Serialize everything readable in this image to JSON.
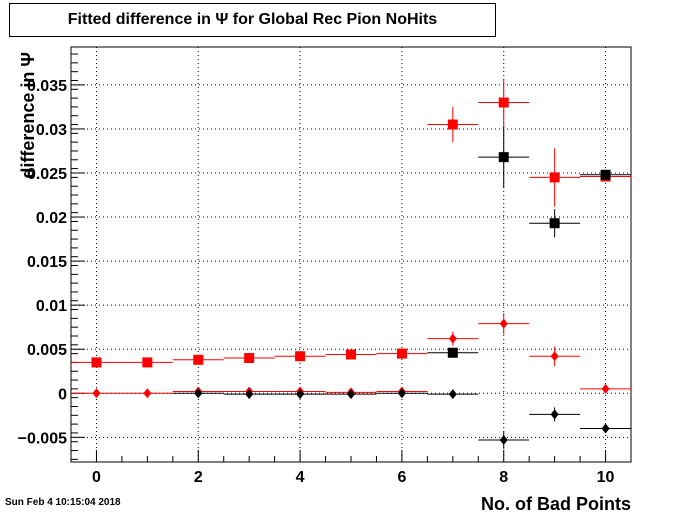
{
  "title": "Fitted difference in  Ψ  for Global Rec Pion NoHits",
  "timestamp": "Sun Feb  4 10:15:04 2018",
  "chart_data": {
    "type": "scatter",
    "title": "Fitted difference in  Ψ  for Global Rec Pion NoHits",
    "xlabel": "No. of Bad Points",
    "ylabel": "difference in  Ψ",
    "xlim": [
      -0.5,
      10.5
    ],
    "ylim": [
      -0.0078,
      0.0393
    ],
    "xticks": [
      0,
      2,
      4,
      6,
      8,
      10
    ],
    "yticks": [
      -0.005,
      0,
      0.005,
      0.01,
      0.015,
      0.02,
      0.025,
      0.03,
      0.035
    ],
    "ytick_labels": [
      "−0.005",
      "0",
      "0.005",
      "0.01",
      "0.015",
      "0.02",
      "0.025",
      "0.03",
      "0.035"
    ],
    "grid": true,
    "series": [
      {
        "marker": "square",
        "color": "#ff0000",
        "points": [
          {
            "x": 0,
            "y": 0.0035,
            "xerr": 0.5,
            "yerr": 0.0001
          },
          {
            "x": 1,
            "y": 0.0035,
            "xerr": 0.5,
            "yerr": 0.0001
          },
          {
            "x": 2,
            "y": 0.0038,
            "xerr": 0.5,
            "yerr": 0.0001
          },
          {
            "x": 3,
            "y": 0.004,
            "xerr": 0.5,
            "yerr": 0.0001
          },
          {
            "x": 4,
            "y": 0.0042,
            "xerr": 0.5,
            "yerr": 0.0001
          },
          {
            "x": 5,
            "y": 0.0044,
            "xerr": 0.5,
            "yerr": 0.0001
          },
          {
            "x": 6,
            "y": 0.0045,
            "xerr": 0.5,
            "yerr": 0.0001
          },
          {
            "x": 7,
            "y": 0.0305,
            "xerr": 0.5,
            "yerr": 0.002
          },
          {
            "x": 8,
            "y": 0.033,
            "xerr": 0.5,
            "yerr": 0.0027
          },
          {
            "x": 9,
            "y": 0.0245,
            "xerr": 0.5,
            "yerr": 0.0033
          },
          {
            "x": 10,
            "y": 0.0246,
            "xerr": 0.5,
            "yerr": 0.0002
          }
        ]
      },
      {
        "marker": "square",
        "color": "#000000",
        "points": [
          {
            "x": 7,
            "y": 0.0046,
            "xerr": 0.5,
            "yerr": 0.0003
          },
          {
            "x": 8,
            "y": 0.0268,
            "xerr": 0.5,
            "yerr": 0.0035
          },
          {
            "x": 9,
            "y": 0.0193,
            "xerr": 0.5,
            "yerr": 0.0016
          },
          {
            "x": 10,
            "y": 0.0248,
            "xerr": 0.5,
            "yerr": 0.0002
          }
        ]
      },
      {
        "marker": "diamond",
        "color": "#ff0000",
        "points": [
          {
            "x": 0,
            "y": 0.0,
            "xerr": 0.5,
            "yerr": 0.0001
          },
          {
            "x": 1,
            "y": 0.0,
            "xerr": 0.5,
            "yerr": 0.0001
          },
          {
            "x": 2,
            "y": 0.0002,
            "xerr": 0.5,
            "yerr": 0.0001
          },
          {
            "x": 3,
            "y": 0.0002,
            "xerr": 0.5,
            "yerr": 0.0001
          },
          {
            "x": 4,
            "y": 0.0002,
            "xerr": 0.5,
            "yerr": 0.0001
          },
          {
            "x": 5,
            "y": 0.0001,
            "xerr": 0.5,
            "yerr": 0.0001
          },
          {
            "x": 6,
            "y": 0.0002,
            "xerr": 0.5,
            "yerr": 0.0001
          },
          {
            "x": 7,
            "y": 0.0062,
            "xerr": 0.5,
            "yerr": 0.0008
          },
          {
            "x": 8,
            "y": 0.0079,
            "xerr": 0.5,
            "yerr": 0.0012
          },
          {
            "x": 9,
            "y": 0.0042,
            "xerr": 0.5,
            "yerr": 0.0011
          },
          {
            "x": 10,
            "y": 0.0005,
            "xerr": 0.5,
            "yerr": 0.0002
          }
        ]
      },
      {
        "marker": "diamond",
        "color": "#000000",
        "points": [
          {
            "x": 2,
            "y": 0.0,
            "xerr": 0.5,
            "yerr": 0.0001
          },
          {
            "x": 3,
            "y": -0.0001,
            "xerr": 0.5,
            "yerr": 0.0001
          },
          {
            "x": 4,
            "y": -0.0001,
            "xerr": 0.5,
            "yerr": 0.0001
          },
          {
            "x": 5,
            "y": -0.0001,
            "xerr": 0.5,
            "yerr": 0.0001
          },
          {
            "x": 6,
            "y": 0.0,
            "xerr": 0.5,
            "yerr": 0.0001
          },
          {
            "x": 7,
            "y": -0.0001,
            "xerr": 0.5,
            "yerr": 0.0001
          },
          {
            "x": 8,
            "y": -0.0053,
            "xerr": 0.5,
            "yerr": 0.001
          },
          {
            "x": 9,
            "y": -0.0024,
            "xerr": 0.5,
            "yerr": 0.0008
          },
          {
            "x": 10,
            "y": -0.004,
            "xerr": 0.5,
            "yerr": 0.0002
          }
        ]
      }
    ]
  }
}
